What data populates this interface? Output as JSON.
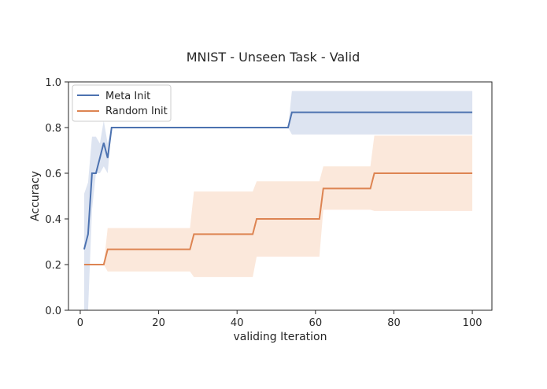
{
  "chart_data": {
    "type": "line",
    "title": "MNIST - Unseen Task - Valid",
    "xlabel": "validing Iteration",
    "ylabel": "Accuracy",
    "xlim": [
      -3,
      105
    ],
    "ylim": [
      0.0,
      1.0
    ],
    "xticks": [
      0,
      20,
      40,
      60,
      80,
      100
    ],
    "yticks": [
      0.0,
      0.2,
      0.4,
      0.6,
      0.8,
      1.0
    ],
    "xtick_labels": [
      "0",
      "20",
      "40",
      "60",
      "80",
      "100"
    ],
    "ytick_labels": [
      "0.0",
      "0.2",
      "0.4",
      "0.6",
      "0.8",
      "1.0"
    ],
    "legend_position": "top-left",
    "series": [
      {
        "name": "Meta Init",
        "color": "#4c72b0",
        "band_color": "#dde4f1",
        "x": [
          1,
          2,
          3,
          4,
          5,
          6,
          7,
          8,
          53,
          54,
          100
        ],
        "y": [
          0.267,
          0.333,
          0.6,
          0.6,
          0.667,
          0.733,
          0.667,
          0.8,
          0.8,
          0.867,
          0.867
        ],
        "lower": [
          0.0,
          0.0,
          0.44,
          0.6,
          0.6,
          0.63,
          0.6,
          0.8,
          0.8,
          0.77,
          0.77
        ],
        "upper": [
          0.51,
          0.56,
          0.76,
          0.76,
          0.73,
          0.83,
          0.73,
          0.8,
          0.8,
          0.96,
          0.96
        ]
      },
      {
        "name": "Random Init",
        "color": "#dd8452",
        "band_color": "#fbe8db",
        "x": [
          1,
          6,
          7,
          28,
          29,
          44,
          45,
          61,
          62,
          74,
          75,
          100
        ],
        "y": [
          0.2,
          0.2,
          0.267,
          0.267,
          0.333,
          0.333,
          0.4,
          0.4,
          0.533,
          0.533,
          0.6,
          0.6
        ],
        "lower": [
          0.2,
          0.2,
          0.17,
          0.17,
          0.145,
          0.145,
          0.235,
          0.235,
          0.44,
          0.44,
          0.435,
          0.435
        ],
        "upper": [
          0.2,
          0.2,
          0.36,
          0.36,
          0.52,
          0.52,
          0.565,
          0.565,
          0.63,
          0.63,
          0.765,
          0.765
        ]
      }
    ]
  }
}
